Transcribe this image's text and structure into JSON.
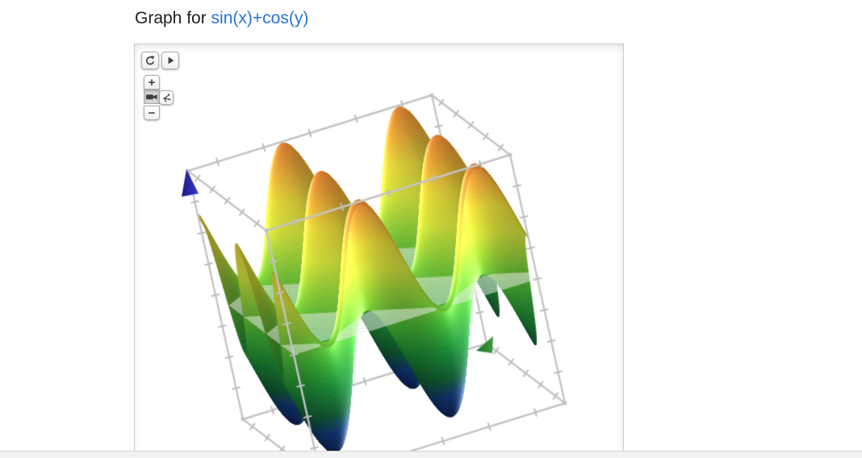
{
  "header": {
    "title_prefix": "Graph for ",
    "title_expression": "sin(x)+cos(y)",
    "link_color": "#2a72d4",
    "text_color": "#1d1d1d"
  },
  "graph_panel": {
    "border_color": "#c9c9c9",
    "controls": {
      "reset_view_icon": "circular-arrow",
      "play_icon": "play-triangle",
      "camera_icon": "video-camera",
      "axes_icon": "axes-3d",
      "zoom_in_label": "+",
      "zoom_out_label": "−"
    },
    "frame": {
      "line_color": "#c4c4c4",
      "tick_color": "#bcbcbc",
      "node_color": "#c2c2c2"
    },
    "axis_markers": {
      "z_cone_color": "#3434c8",
      "z_cone_dark": "#1c1c86",
      "y_arrow_color": "#3f9e3f",
      "y_arrow_dark": "#1e6e26"
    }
  },
  "divider": {
    "line_color": "#d4d4d4",
    "band_color": "#f2f2f2"
  },
  "chart_data": {
    "type": "surface",
    "title": "Graph for sin(x)+cos(y)",
    "expression": "sin(x)+cos(y)",
    "x_range": [
      -6.6,
      6.6
    ],
    "y_range": [
      -6.6,
      6.6
    ],
    "z_range": [
      -2,
      2
    ],
    "x_ticks": [
      -5,
      -2.5,
      0,
      2.5,
      5
    ],
    "y_ticks": [
      -5,
      -2.5,
      0,
      2.5,
      5
    ],
    "z_ticks": [
      -1.5,
      -1,
      -0.5,
      0,
      0.5,
      1,
      1.5
    ],
    "clip_plane_z": 0,
    "grid_resolution": 130,
    "legend": "none",
    "gridlines": false,
    "colormap": [
      [
        0.0,
        "#0a1a40"
      ],
      [
        0.1,
        "#11336b"
      ],
      [
        0.18,
        "#135c33"
      ],
      [
        0.3,
        "#1e8f38"
      ],
      [
        0.42,
        "#46bb3a"
      ],
      [
        0.55,
        "#8fd83c"
      ],
      [
        0.68,
        "#e0ef40"
      ],
      [
        0.8,
        "#f2e23e"
      ],
      [
        0.9,
        "#f0b13a"
      ],
      [
        1.0,
        "#db8030"
      ]
    ]
  }
}
